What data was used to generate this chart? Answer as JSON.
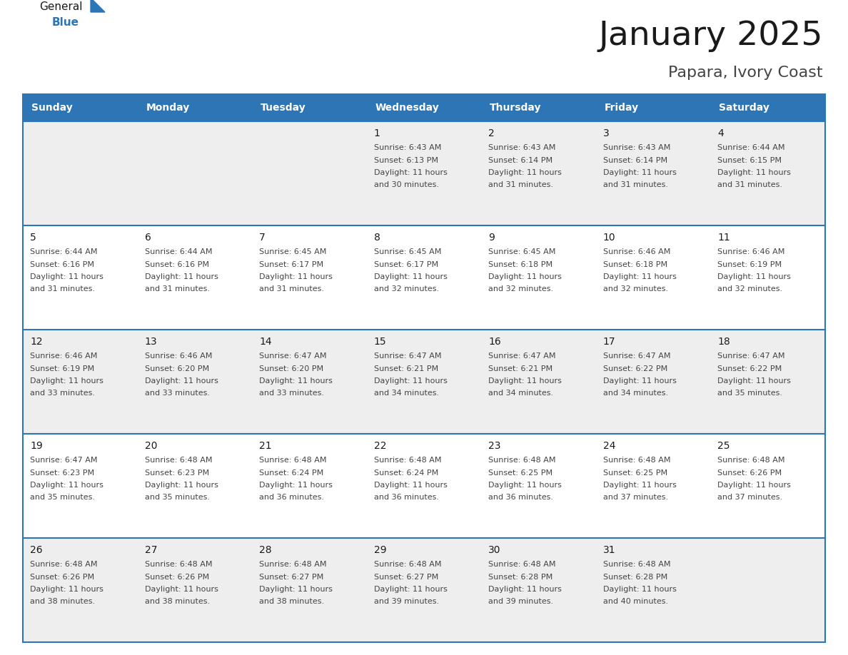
{
  "title": "January 2025",
  "subtitle": "Papara, Ivory Coast",
  "header_bg": "#2E75B6",
  "header_text_color": "#FFFFFF",
  "day_names": [
    "Sunday",
    "Monday",
    "Tuesday",
    "Wednesday",
    "Thursday",
    "Friday",
    "Saturday"
  ],
  "row_bg_even": "#EEEEEE",
  "row_bg_odd": "#FFFFFF",
  "border_color": "#2E75B6",
  "text_color": "#444444",
  "title_color": "#1a1a1a",
  "calendar_data": [
    [
      {
        "day": null,
        "sunrise": null,
        "sunset": null,
        "daylight": null
      },
      {
        "day": null,
        "sunrise": null,
        "sunset": null,
        "daylight": null
      },
      {
        "day": null,
        "sunrise": null,
        "sunset": null,
        "daylight": null
      },
      {
        "day": 1,
        "sunrise": "6:43 AM",
        "sunset": "6:13 PM",
        "daylight": "11 hours and 30 minutes."
      },
      {
        "day": 2,
        "sunrise": "6:43 AM",
        "sunset": "6:14 PM",
        "daylight": "11 hours and 31 minutes."
      },
      {
        "day": 3,
        "sunrise": "6:43 AM",
        "sunset": "6:14 PM",
        "daylight": "11 hours and 31 minutes."
      },
      {
        "day": 4,
        "sunrise": "6:44 AM",
        "sunset": "6:15 PM",
        "daylight": "11 hours and 31 minutes."
      }
    ],
    [
      {
        "day": 5,
        "sunrise": "6:44 AM",
        "sunset": "6:16 PM",
        "daylight": "11 hours and 31 minutes."
      },
      {
        "day": 6,
        "sunrise": "6:44 AM",
        "sunset": "6:16 PM",
        "daylight": "11 hours and 31 minutes."
      },
      {
        "day": 7,
        "sunrise": "6:45 AM",
        "sunset": "6:17 PM",
        "daylight": "11 hours and 31 minutes."
      },
      {
        "day": 8,
        "sunrise": "6:45 AM",
        "sunset": "6:17 PM",
        "daylight": "11 hours and 32 minutes."
      },
      {
        "day": 9,
        "sunrise": "6:45 AM",
        "sunset": "6:18 PM",
        "daylight": "11 hours and 32 minutes."
      },
      {
        "day": 10,
        "sunrise": "6:46 AM",
        "sunset": "6:18 PM",
        "daylight": "11 hours and 32 minutes."
      },
      {
        "day": 11,
        "sunrise": "6:46 AM",
        "sunset": "6:19 PM",
        "daylight": "11 hours and 32 minutes."
      }
    ],
    [
      {
        "day": 12,
        "sunrise": "6:46 AM",
        "sunset": "6:19 PM",
        "daylight": "11 hours and 33 minutes."
      },
      {
        "day": 13,
        "sunrise": "6:46 AM",
        "sunset": "6:20 PM",
        "daylight": "11 hours and 33 minutes."
      },
      {
        "day": 14,
        "sunrise": "6:47 AM",
        "sunset": "6:20 PM",
        "daylight": "11 hours and 33 minutes."
      },
      {
        "day": 15,
        "sunrise": "6:47 AM",
        "sunset": "6:21 PM",
        "daylight": "11 hours and 34 minutes."
      },
      {
        "day": 16,
        "sunrise": "6:47 AM",
        "sunset": "6:21 PM",
        "daylight": "11 hours and 34 minutes."
      },
      {
        "day": 17,
        "sunrise": "6:47 AM",
        "sunset": "6:22 PM",
        "daylight": "11 hours and 34 minutes."
      },
      {
        "day": 18,
        "sunrise": "6:47 AM",
        "sunset": "6:22 PM",
        "daylight": "11 hours and 35 minutes."
      }
    ],
    [
      {
        "day": 19,
        "sunrise": "6:47 AM",
        "sunset": "6:23 PM",
        "daylight": "11 hours and 35 minutes."
      },
      {
        "day": 20,
        "sunrise": "6:48 AM",
        "sunset": "6:23 PM",
        "daylight": "11 hours and 35 minutes."
      },
      {
        "day": 21,
        "sunrise": "6:48 AM",
        "sunset": "6:24 PM",
        "daylight": "11 hours and 36 minutes."
      },
      {
        "day": 22,
        "sunrise": "6:48 AM",
        "sunset": "6:24 PM",
        "daylight": "11 hours and 36 minutes."
      },
      {
        "day": 23,
        "sunrise": "6:48 AM",
        "sunset": "6:25 PM",
        "daylight": "11 hours and 36 minutes."
      },
      {
        "day": 24,
        "sunrise": "6:48 AM",
        "sunset": "6:25 PM",
        "daylight": "11 hours and 37 minutes."
      },
      {
        "day": 25,
        "sunrise": "6:48 AM",
        "sunset": "6:26 PM",
        "daylight": "11 hours and 37 minutes."
      }
    ],
    [
      {
        "day": 26,
        "sunrise": "6:48 AM",
        "sunset": "6:26 PM",
        "daylight": "11 hours and 38 minutes."
      },
      {
        "day": 27,
        "sunrise": "6:48 AM",
        "sunset": "6:26 PM",
        "daylight": "11 hours and 38 minutes."
      },
      {
        "day": 28,
        "sunrise": "6:48 AM",
        "sunset": "6:27 PM",
        "daylight": "11 hours and 38 minutes."
      },
      {
        "day": 29,
        "sunrise": "6:48 AM",
        "sunset": "6:27 PM",
        "daylight": "11 hours and 39 minutes."
      },
      {
        "day": 30,
        "sunrise": "6:48 AM",
        "sunset": "6:28 PM",
        "daylight": "11 hours and 39 minutes."
      },
      {
        "day": 31,
        "sunrise": "6:48 AM",
        "sunset": "6:28 PM",
        "daylight": "11 hours and 40 minutes."
      },
      {
        "day": null,
        "sunrise": null,
        "sunset": null,
        "daylight": null
      }
    ]
  ]
}
